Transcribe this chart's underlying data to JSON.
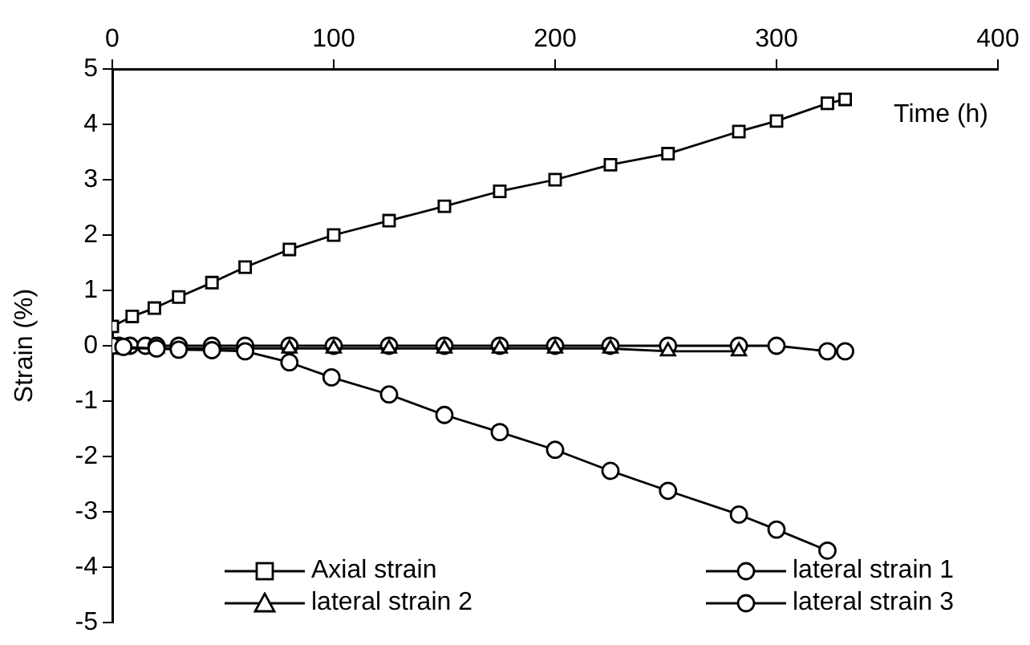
{
  "chart_data": {
    "type": "line",
    "xlabel": "Time (h)",
    "ylabel": "Strain (%)",
    "xlim": [
      0,
      400
    ],
    "xticks": [
      0,
      100,
      200,
      300,
      400
    ],
    "ylim": [
      -5,
      5
    ],
    "yticks": [
      -5,
      -4,
      -3,
      -2,
      -1,
      0,
      1,
      2,
      3,
      4,
      5
    ],
    "grid": false,
    "legend": "bottom",
    "line_style": "solid",
    "series": [
      {
        "name": "Axial strain",
        "color": "#000000",
        "marker": "square",
        "x": [
          0,
          9,
          19,
          30,
          45,
          60,
          80,
          100,
          125,
          150,
          175,
          200,
          225,
          251,
          283,
          300,
          323,
          331
        ],
        "values": [
          0.35,
          0.53,
          0.68,
          0.88,
          1.14,
          1.42,
          1.74,
          2.0,
          2.26,
          2.52,
          2.79,
          3.0,
          3.27,
          3.47,
          3.87,
          4.06,
          4.38,
          4.45
        ]
      },
      {
        "name": "lateral strain 1",
        "color": "#000000",
        "marker": "circle",
        "x": [
          0,
          5,
          20,
          30,
          45,
          60,
          80,
          99,
          125,
          150,
          175,
          200,
          225,
          251,
          283,
          300,
          323
        ],
        "values": [
          0,
          -0.02,
          -0.05,
          -0.07,
          -0.08,
          -0.1,
          -0.3,
          -0.57,
          -0.88,
          -1.25,
          -1.56,
          -1.88,
          -2.26,
          -2.62,
          -3.05,
          -3.32,
          -3.7
        ]
      },
      {
        "name": "lateral strain 2",
        "color": "#000000",
        "marker": "triangle",
        "x": [
          0,
          5,
          20,
          80,
          100,
          125,
          150,
          175,
          200,
          225,
          251,
          283
        ],
        "values": [
          -0.05,
          -0.05,
          -0.05,
          -0.05,
          -0.05,
          -0.05,
          -0.05,
          -0.05,
          -0.05,
          -0.05,
          -0.1,
          -0.1
        ]
      },
      {
        "name": "lateral strain 3",
        "color": "#000000",
        "marker": "circle",
        "x": [
          0,
          3,
          8,
          15,
          20,
          30,
          45,
          60,
          80,
          100,
          125,
          150,
          175,
          200,
          225,
          251,
          283,
          300,
          323,
          331
        ],
        "values": [
          0,
          0,
          0,
          0,
          0,
          0,
          0,
          0,
          0,
          0,
          0,
          0,
          0,
          0,
          0,
          0,
          0,
          0,
          -0.1,
          -0.1
        ]
      }
    ]
  }
}
